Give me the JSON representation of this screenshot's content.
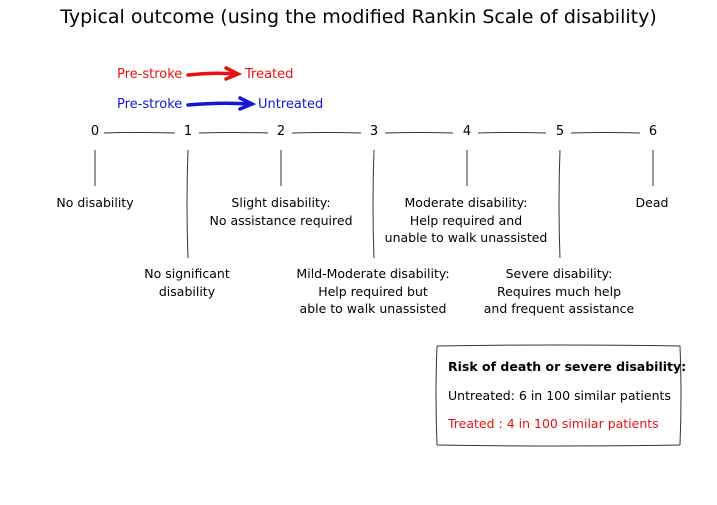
{
  "title": "Typical outcome (using the modified Rankin Scale of disability)",
  "legend": {
    "treated": {
      "from": "Pre-stroke",
      "to": "Treated",
      "color": "#e8130f"
    },
    "untreated": {
      "from": "Pre-stroke",
      "to": "Untreated",
      "color": "#1218d8"
    }
  },
  "scale": {
    "ticks": [
      "0",
      "1",
      "2",
      "3",
      "4",
      "5",
      "6"
    ],
    "descriptions": [
      [
        "No disability"
      ],
      [
        "No significant",
        "disability"
      ],
      [
        "Slight disability:",
        "No assistance required"
      ],
      [
        "Mild-Moderate disability:",
        "Help required but",
        "able to walk unassisted"
      ],
      [
        "Moderate disability:",
        "Help required and",
        "unable to walk unassisted"
      ],
      [
        "Severe disability:",
        "Requires much help",
        "and frequent assistance"
      ],
      [
        "Dead"
      ]
    ]
  },
  "risk_box": {
    "heading": "Risk of death or severe disability:",
    "untreated": "Untreated: 6 in 100 similar patients",
    "treated": "Treated : 4 in 100 similar patients",
    "treated_color": "#e8130f"
  }
}
